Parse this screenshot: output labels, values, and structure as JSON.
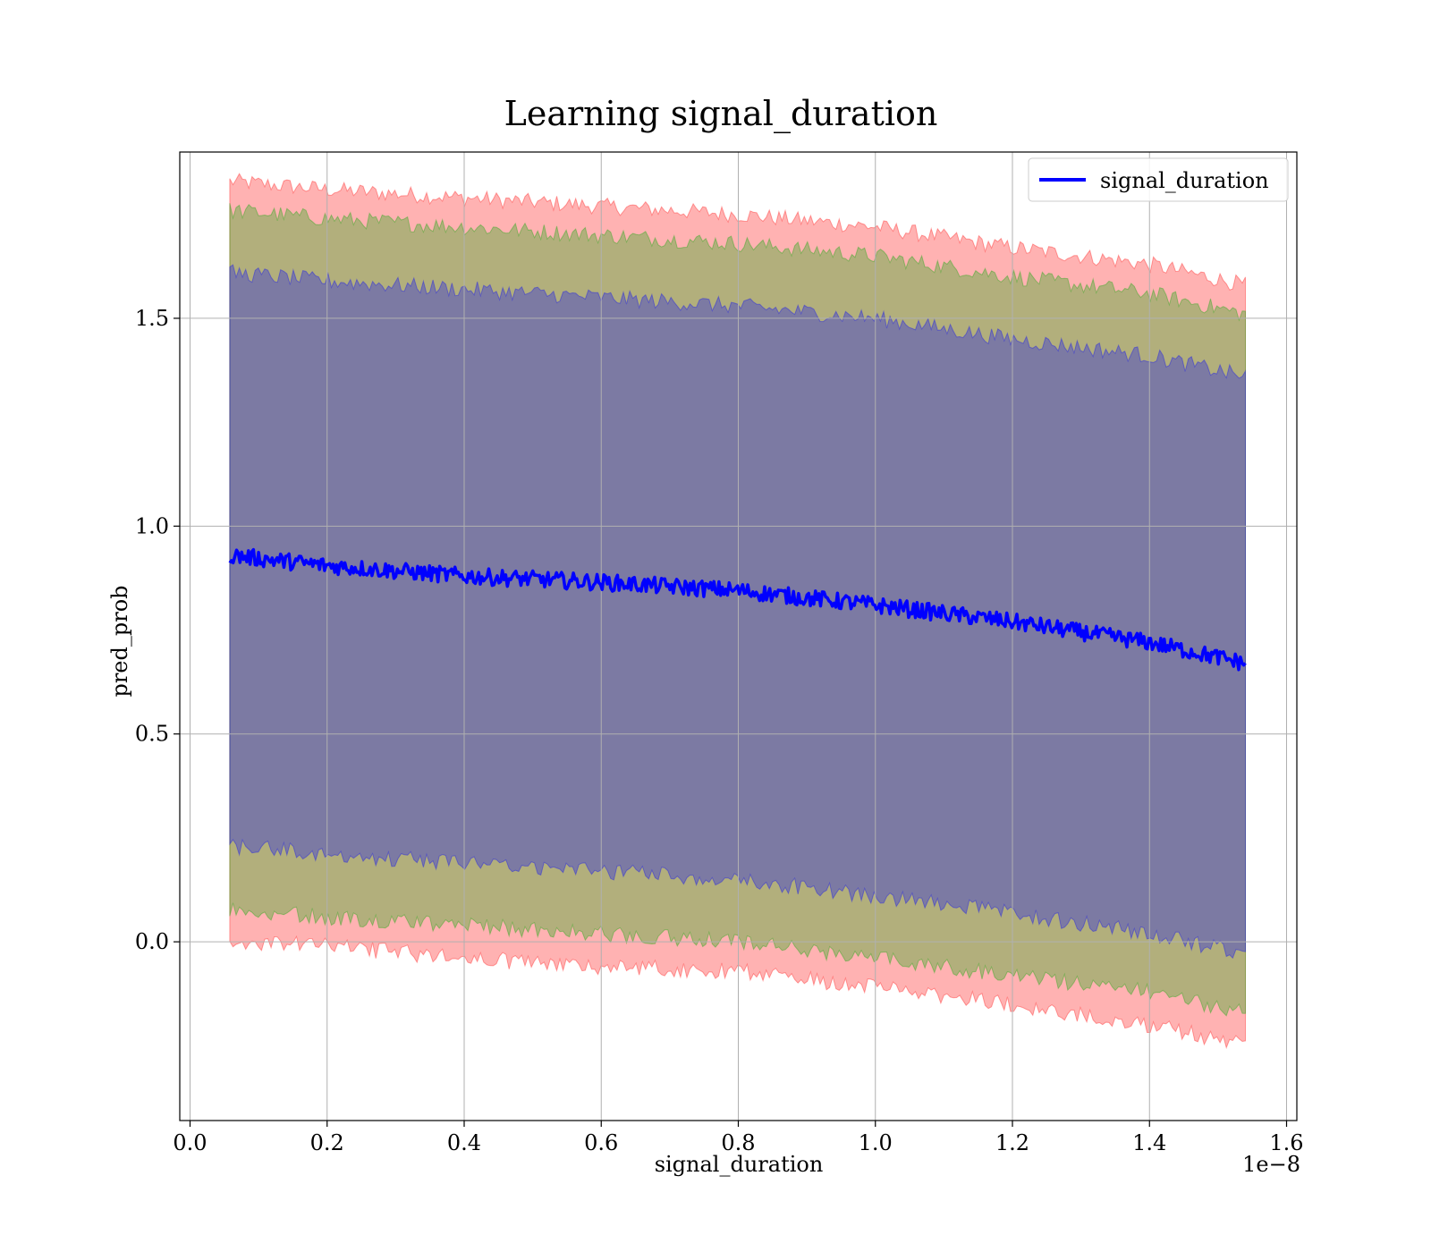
{
  "chart_data": {
    "type": "area",
    "title": "Learning signal_duration",
    "xlabel": "signal_duration",
    "ylabel": "pred_prob",
    "x_offset_label": "1e−8",
    "xlim": [
      -0.015,
      1.615
    ],
    "ylim": [
      -0.43,
      1.9
    ],
    "x_ticks": [
      0.0,
      0.2,
      0.4,
      0.6,
      0.8,
      1.0,
      1.2,
      1.4,
      1.6
    ],
    "x_tick_labels": [
      "0.0",
      "0.2",
      "0.4",
      "0.6",
      "0.8",
      "1.0",
      "1.2",
      "1.4",
      "1.6"
    ],
    "y_ticks": [
      0.0,
      0.5,
      1.0,
      1.5
    ],
    "y_tick_labels": [
      "0.0",
      "0.5",
      "1.0",
      "1.5"
    ],
    "grid": true,
    "legend_position": "top-right",
    "series": [
      {
        "name": "signal_duration",
        "color": "#0000ff",
        "x": [
          0.058,
          0.2,
          0.4,
          0.6,
          0.8,
          1.0,
          1.2,
          1.4,
          1.54
        ],
        "y": [
          0.93,
          0.905,
          0.88,
          0.865,
          0.845,
          0.81,
          0.77,
          0.72,
          0.67
        ]
      }
    ],
    "bands": [
      {
        "color": "#ff0000",
        "x": [
          0.058,
          0.2,
          0.4,
          0.6,
          0.8,
          1.0,
          1.2,
          1.4,
          1.54
        ],
        "upper": [
          1.83,
          1.81,
          1.79,
          1.77,
          1.75,
          1.72,
          1.67,
          1.63,
          1.58
        ],
        "lower": [
          0.0,
          -0.01,
          -0.04,
          -0.06,
          -0.07,
          -0.11,
          -0.15,
          -0.2,
          -0.25
        ]
      },
      {
        "color": "#00aa00",
        "x": [
          0.058,
          0.2,
          0.4,
          0.6,
          0.8,
          1.0,
          1.2,
          1.4,
          1.54
        ],
        "upper": [
          1.76,
          1.74,
          1.72,
          1.7,
          1.68,
          1.65,
          1.6,
          1.56,
          1.51
        ],
        "lower": [
          0.08,
          0.06,
          0.04,
          0.02,
          0.0,
          -0.04,
          -0.08,
          -0.12,
          -0.17
        ]
      },
      {
        "color": "#0000ff",
        "x": [
          0.058,
          0.2,
          0.4,
          0.6,
          0.8,
          1.0,
          1.2,
          1.4,
          1.54
        ],
        "upper": [
          1.61,
          1.59,
          1.57,
          1.55,
          1.53,
          1.5,
          1.45,
          1.41,
          1.36
        ],
        "lower": [
          0.23,
          0.21,
          0.19,
          0.17,
          0.15,
          0.11,
          0.07,
          0.02,
          -0.03
        ]
      }
    ]
  }
}
